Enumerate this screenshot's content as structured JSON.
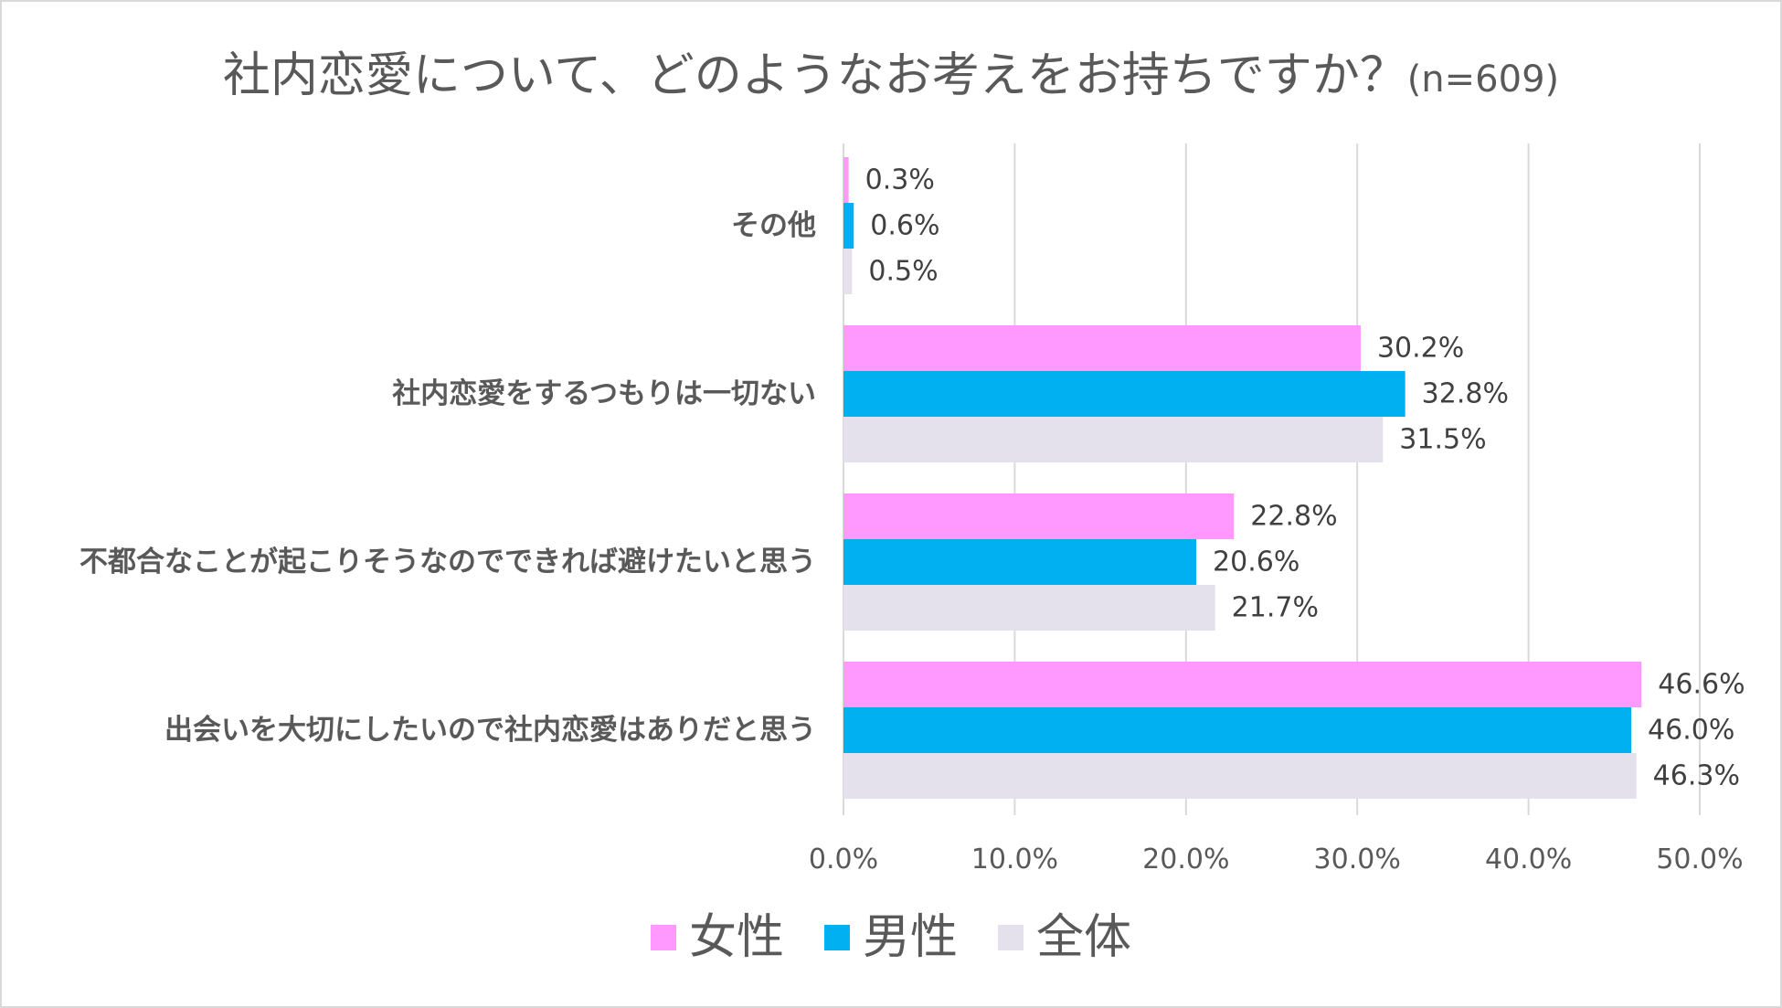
{
  "chart_data": {
    "type": "bar",
    "orientation": "horizontal",
    "title": "社内恋愛について、どのようなお考えをお持ちですか？",
    "title_n": "(n=609)",
    "categories": [
      "その他",
      "社内恋愛をするつもりは一切ない",
      "不都合なことが起こりそうなのでできれば避けたいと思う",
      "出会いを大切にしたいので社内恋愛はありだと思う"
    ],
    "series": [
      {
        "name": "女性",
        "color": "#ff99ff",
        "values": [
          0.3,
          30.2,
          22.8,
          46.6
        ],
        "labels": [
          "0.3%",
          "30.2%",
          "22.8%",
          "46.6%"
        ]
      },
      {
        "name": "男性",
        "color": "#00b0f0",
        "values": [
          0.6,
          32.8,
          20.6,
          46.0
        ],
        "labels": [
          "0.6%",
          "32.8%",
          "20.6%",
          "46.0%"
        ]
      },
      {
        "name": "全体",
        "color": "#e4e0ec",
        "values": [
          0.5,
          31.5,
          21.7,
          46.3
        ],
        "labels": [
          "0.5%",
          "31.5%",
          "21.7%",
          "46.3%"
        ]
      }
    ],
    "xlim": [
      0,
      50
    ],
    "xticks": [
      0,
      10,
      20,
      30,
      40,
      50
    ],
    "xtick_labels": [
      "0.0%",
      "10.0%",
      "20.0%",
      "30.0%",
      "40.0%",
      "50.0%"
    ],
    "gridlines": true,
    "legend_position": "bottom"
  }
}
